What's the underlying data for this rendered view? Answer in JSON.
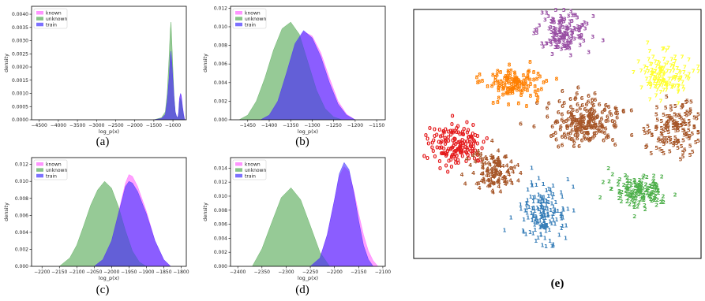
{
  "figure": {
    "panels": [
      {
        "caption": "(a)"
      },
      {
        "caption": "(b)"
      },
      {
        "caption": "(c)"
      },
      {
        "caption": "(d)"
      },
      {
        "caption": "(e)"
      }
    ]
  },
  "colors": {
    "known": "#ff66ff",
    "unknown": "#55aa55",
    "train": "#4433ff",
    "tsne": [
      "#e41a1c",
      "#377eb8",
      "#4daf4a",
      "#984ea3",
      "#ff7f00",
      "#ffff33",
      "#a65628"
    ]
  },
  "chart_data": [
    {
      "id": "a",
      "type": "area",
      "xlabel": "log_p(x)",
      "ylabel": "density",
      "xlim": [
        -4700,
        -650
      ],
      "ylim": [
        0,
        0.0043
      ],
      "xticks": [
        -4500,
        -4000,
        -3500,
        -3000,
        -2500,
        -2000,
        -1500,
        -1000
      ],
      "xtick_labels": [
        "−4500",
        "−4000",
        "−3500",
        "−3000",
        "−2500",
        "−2000",
        "−1500",
        "−1000"
      ],
      "yticks": [
        0.0,
        0.0005,
        0.001,
        0.0015,
        0.002,
        0.0025,
        0.003,
        0.0035,
        0.004
      ],
      "ytick_labels": [
        "0.0000",
        "0.0005",
        "0.0010",
        "0.0015",
        "0.0020",
        "0.0025",
        "0.0030",
        "0.0035",
        "0.0040"
      ],
      "legend": [
        "known",
        "unknown",
        "train"
      ],
      "legend_loc": "top-left",
      "series": [
        {
          "name": "known",
          "x": [
            -1500,
            -1300,
            -1200,
            -1150,
            -1100,
            -1070,
            -1050,
            -1030,
            -1000,
            -970,
            -940,
            -900,
            -870,
            -850,
            -830,
            -800,
            -780,
            -750,
            -720,
            -700,
            -680
          ],
          "y": [
            0,
            5e-05,
            0.0002,
            0.0007,
            0.0016,
            0.0023,
            0.0025,
            0.0022,
            0.0015,
            0.0008,
            0.0003,
            0.0001,
            0.0001,
            0.0003,
            0.0008,
            0.001,
            0.0009,
            0.0005,
            0.0002,
            5e-05,
            0
          ]
        },
        {
          "name": "unknown",
          "x": [
            -1500,
            -1300,
            -1200,
            -1150,
            -1100,
            -1070,
            -1050,
            -1030,
            -1000,
            -970,
            -940,
            -900,
            -870,
            -850,
            -830,
            -800,
            -780,
            -750,
            -720,
            -700,
            -680
          ],
          "y": [
            0,
            8e-05,
            0.0003,
            0.001,
            0.0024,
            0.0034,
            0.0037,
            0.003,
            0.0019,
            0.0009,
            0.0003,
            0.0001,
            0.0001,
            0.0002,
            0.0006,
            0.0008,
            0.0007,
            0.0004,
            0.0001,
            3e-05,
            0
          ]
        },
        {
          "name": "train",
          "x": [
            -1500,
            -1300,
            -1200,
            -1150,
            -1100,
            -1070,
            -1050,
            -1030,
            -1000,
            -970,
            -940,
            -900,
            -870,
            -850,
            -830,
            -800,
            -780,
            -750,
            -720,
            -700,
            -680
          ],
          "y": [
            0,
            5e-05,
            0.0002,
            0.0007,
            0.0016,
            0.0024,
            0.0026,
            0.0022,
            0.0015,
            0.0008,
            0.0003,
            0.0001,
            0.0001,
            0.0003,
            0.0008,
            0.001,
            0.0009,
            0.0005,
            0.0002,
            5e-05,
            0
          ]
        }
      ]
    },
    {
      "id": "b",
      "type": "area",
      "xlabel": "log_p(x)",
      "ylabel": "density",
      "xlim": [
        -1490,
        -1130
      ],
      "ylim": [
        0,
        0.0122
      ],
      "xticks": [
        -1450,
        -1400,
        -1350,
        -1300,
        -1250,
        -1200,
        -1150
      ],
      "xtick_labels": [
        "−1450",
        "−1400",
        "−1350",
        "−1300",
        "−1250",
        "−1200",
        "−1150"
      ],
      "yticks": [
        0.0,
        0.002,
        0.004,
        0.006,
        0.008,
        0.01,
        0.012
      ],
      "ytick_labels": [
        "0.000",
        "0.002",
        "0.004",
        "0.006",
        "0.008",
        "0.010",
        "0.012"
      ],
      "legend": [
        "known",
        "unknown",
        "train"
      ],
      "legend_loc": "top-left",
      "series": [
        {
          "name": "known",
          "x": [
            -1420,
            -1400,
            -1380,
            -1360,
            -1340,
            -1320,
            -1300,
            -1280,
            -1260,
            -1240,
            -1220,
            -1200
          ],
          "y": [
            0,
            0.0005,
            0.002,
            0.005,
            0.008,
            0.0095,
            0.009,
            0.0072,
            0.0045,
            0.002,
            0.0006,
            0
          ]
        },
        {
          "name": "unknown",
          "x": [
            -1470,
            -1450,
            -1430,
            -1410,
            -1390,
            -1370,
            -1350,
            -1330,
            -1310,
            -1290,
            -1270,
            -1250,
            -1230
          ],
          "y": [
            0,
            0.0005,
            0.002,
            0.0045,
            0.0075,
            0.0098,
            0.0105,
            0.0092,
            0.0062,
            0.0032,
            0.0012,
            0.0003,
            0
          ]
        },
        {
          "name": "train",
          "x": [
            -1420,
            -1400,
            -1380,
            -1360,
            -1340,
            -1320,
            -1300,
            -1280,
            -1260,
            -1240,
            -1220,
            -1200
          ],
          "y": [
            0,
            0.0005,
            0.002,
            0.005,
            0.0082,
            0.0096,
            0.0088,
            0.0068,
            0.004,
            0.0017,
            0.0005,
            0
          ]
        }
      ]
    },
    {
      "id": "c",
      "type": "area",
      "xlabel": "log_p(x)",
      "ylabel": "density",
      "xlim": [
        -2230,
        -1785
      ],
      "ylim": [
        0,
        0.0128
      ],
      "xticks": [
        -2200,
        -2150,
        -2100,
        -2050,
        -2000,
        -1950,
        -1900,
        -1850,
        -1800
      ],
      "xtick_labels": [
        "−2200",
        "−2150",
        "−2100",
        "−2050",
        "−2000",
        "−1950",
        "−1900",
        "−1850",
        "−1800"
      ],
      "yticks": [
        0.0,
        0.002,
        0.004,
        0.006,
        0.008,
        0.01,
        0.012
      ],
      "ytick_labels": [
        "0.000",
        "0.002",
        "0.004",
        "0.006",
        "0.008",
        "0.010",
        "0.012"
      ],
      "legend": [
        "known",
        "unknown",
        "train"
      ],
      "legend_loc": "top-left",
      "series": [
        {
          "name": "known",
          "x": [
            -2050,
            -2025,
            -2000,
            -1975,
            -1960,
            -1950,
            -1940,
            -1925,
            -1900,
            -1875,
            -1850,
            -1830
          ],
          "y": [
            0,
            0.0008,
            0.003,
            0.0072,
            0.0098,
            0.0108,
            0.0106,
            0.0094,
            0.0065,
            0.003,
            0.0008,
            0
          ]
        },
        {
          "name": "unknown",
          "x": [
            -2150,
            -2120,
            -2100,
            -2080,
            -2060,
            -2040,
            -2020,
            -2000,
            -1980,
            -1960,
            -1940,
            -1920,
            -1900
          ],
          "y": [
            0,
            0.001,
            0.0025,
            0.0048,
            0.0072,
            0.009,
            0.01,
            0.0092,
            0.007,
            0.0042,
            0.0018,
            0.0005,
            0
          ]
        },
        {
          "name": "train",
          "x": [
            -2050,
            -2025,
            -2000,
            -1975,
            -1960,
            -1950,
            -1940,
            -1925,
            -1900,
            -1875,
            -1850,
            -1830
          ],
          "y": [
            0,
            0.0008,
            0.003,
            0.007,
            0.0094,
            0.01,
            0.0098,
            0.0088,
            0.0062,
            0.003,
            0.0008,
            0
          ]
        }
      ]
    },
    {
      "id": "d",
      "type": "area",
      "xlabel": "log_p(x)",
      "ylabel": "density",
      "xlim": [
        -2415,
        -2095
      ],
      "ylim": [
        0,
        0.0155
      ],
      "xticks": [
        -2400,
        -2350,
        -2300,
        -2250,
        -2200,
        -2150,
        -2100
      ],
      "xtick_labels": [
        "−2400",
        "−2350",
        "−2300",
        "−2250",
        "−2200",
        "−2150",
        "−2100"
      ],
      "yticks": [
        0.0,
        0.002,
        0.004,
        0.006,
        0.008,
        0.01,
        0.012,
        0.014
      ],
      "ytick_labels": [
        "0.000",
        "0.002",
        "0.004",
        "0.006",
        "0.008",
        "0.010",
        "0.012",
        "0.014"
      ],
      "legend": [
        "known",
        "unknown",
        "train"
      ],
      "legend_loc": "top-left",
      "series": [
        {
          "name": "known",
          "x": [
            -2250,
            -2230,
            -2215,
            -2200,
            -2190,
            -2180,
            -2170,
            -2160,
            -2150,
            -2140,
            -2130,
            -2120,
            -2110
          ],
          "y": [
            0,
            0.0012,
            0.0045,
            0.0095,
            0.0128,
            0.0142,
            0.0135,
            0.0108,
            0.0075,
            0.0045,
            0.0022,
            0.0008,
            0
          ]
        },
        {
          "name": "unknown",
          "x": [
            -2370,
            -2350,
            -2330,
            -2310,
            -2290,
            -2270,
            -2250,
            -2230,
            -2210
          ],
          "y": [
            0,
            0.0025,
            0.0062,
            0.0098,
            0.0112,
            0.0095,
            0.0058,
            0.002,
            0
          ]
        },
        {
          "name": "train",
          "x": [
            -2250,
            -2230,
            -2215,
            -2200,
            -2190,
            -2180,
            -2170,
            -2160,
            -2150,
            -2140,
            -2130,
            -2120
          ],
          "y": [
            0,
            0.0012,
            0.0045,
            0.0095,
            0.0132,
            0.0148,
            0.0138,
            0.0105,
            0.0065,
            0.003,
            0.001,
            0
          ]
        }
      ]
    },
    {
      "id": "e",
      "type": "scatter",
      "clusters": [
        {
          "label": "0",
          "color_index": 0,
          "center": [
            15,
            55
          ],
          "spread": [
            9,
            8
          ],
          "n": 160
        },
        {
          "label": "1",
          "color_index": 1,
          "center": [
            45,
            83
          ],
          "spread": [
            7,
            10
          ],
          "n": 160
        },
        {
          "label": "2",
          "color_index": 2,
          "center": [
            79,
            73
          ],
          "spread": [
            9,
            6
          ],
          "n": 150
        },
        {
          "label": "3",
          "color_index": 3,
          "center": [
            52,
            10
          ],
          "spread": [
            8,
            7
          ],
          "n": 150
        },
        {
          "label": "4",
          "color_index": 6,
          "center": [
            28,
            66
          ],
          "spread": [
            7,
            8
          ],
          "n": 130
        },
        {
          "label": "5",
          "color_index": 6,
          "center": [
            90,
            48
          ],
          "spread": [
            8,
            10
          ],
          "n": 140
        },
        {
          "label": "6",
          "color_index": 6,
          "center": [
            60,
            46
          ],
          "spread": [
            11,
            8
          ],
          "n": 220
        },
        {
          "label": "7",
          "color_index": 5,
          "center": [
            87,
            27
          ],
          "spread": [
            8,
            8
          ],
          "n": 140
        },
        {
          "label": "8",
          "color_index": 4,
          "center": [
            35,
            30
          ],
          "spread": [
            9,
            6
          ],
          "n": 130
        }
      ]
    }
  ]
}
